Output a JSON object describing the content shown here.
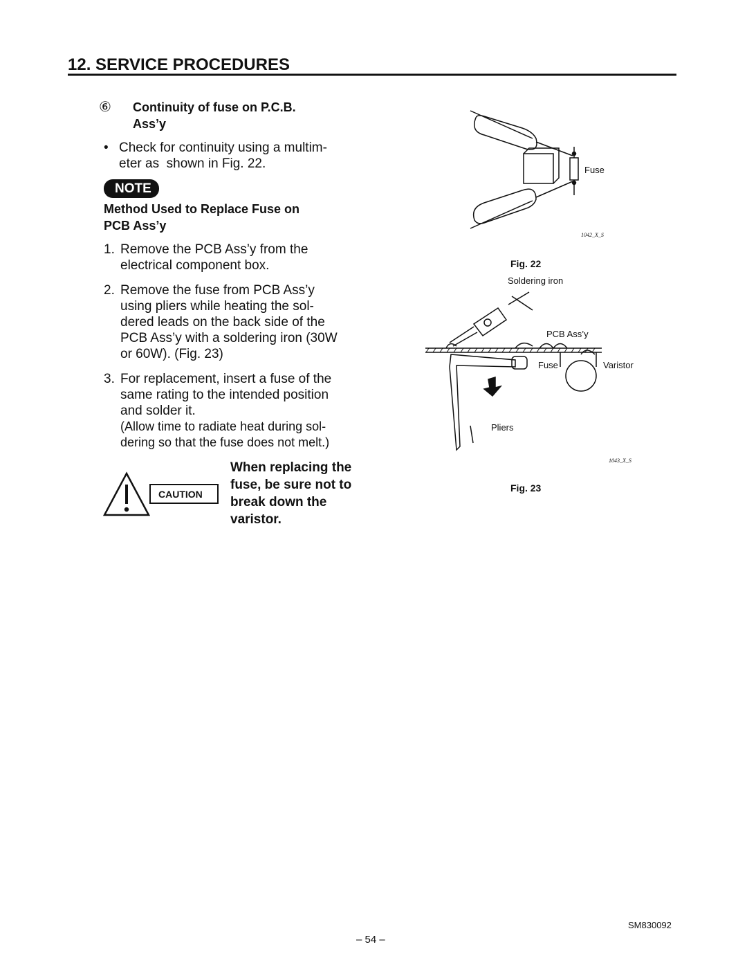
{
  "header": {
    "title": "12. SERVICE PROCEDURES"
  },
  "section": {
    "number": "⑥",
    "title_lines": [
      "Continuity of fuse on P.C.B.",
      "Ass’y"
    ],
    "bullet": "•",
    "bullet_lines": [
      "Check for continuity using a multim-",
      "eter as  shown in Fig. 22."
    ]
  },
  "note": {
    "badge": "NOTE",
    "title_lines": [
      "Method Used to Replace Fuse on",
      "PCB Ass’y"
    ],
    "steps": [
      {
        "number": "1.",
        "lines": [
          "Remove the PCB Ass’y from the",
          "electrical component box."
        ]
      },
      {
        "number": "2.",
        "lines": [
          "Remove the fuse from PCB Ass’y",
          "using pliers while heating the sol-",
          "dered leads on the back side of the",
          "PCB Ass’y with a soldering iron (30W",
          "or 60W). (Fig. 23)"
        ]
      },
      {
        "number": "3.",
        "lines": [
          "For replacement, insert a fuse of the",
          "same rating to the intended position",
          "and solder it."
        ]
      }
    ],
    "remark_lines": [
      "(Allow time to radiate heat during sol-",
      "dering so that the fuse does not melt.)"
    ]
  },
  "caution": {
    "badge": "CAUTION",
    "lines": [
      "When replacing the",
      "fuse, be sure not to",
      "break down the",
      "varistor."
    ]
  },
  "figures": [
    {
      "caption": "Fig. 22",
      "code": "1042_X_S",
      "labels": [
        "Fuse"
      ]
    },
    {
      "caption": "Fig. 23",
      "code": "1043_X_S",
      "labels": [
        "Soldering iron",
        "PCB Ass’y",
        "Fuse",
        "Varistor",
        "Pliers"
      ]
    }
  ],
  "footer": {
    "doc": "SM830092",
    "page": "– 54 –"
  }
}
